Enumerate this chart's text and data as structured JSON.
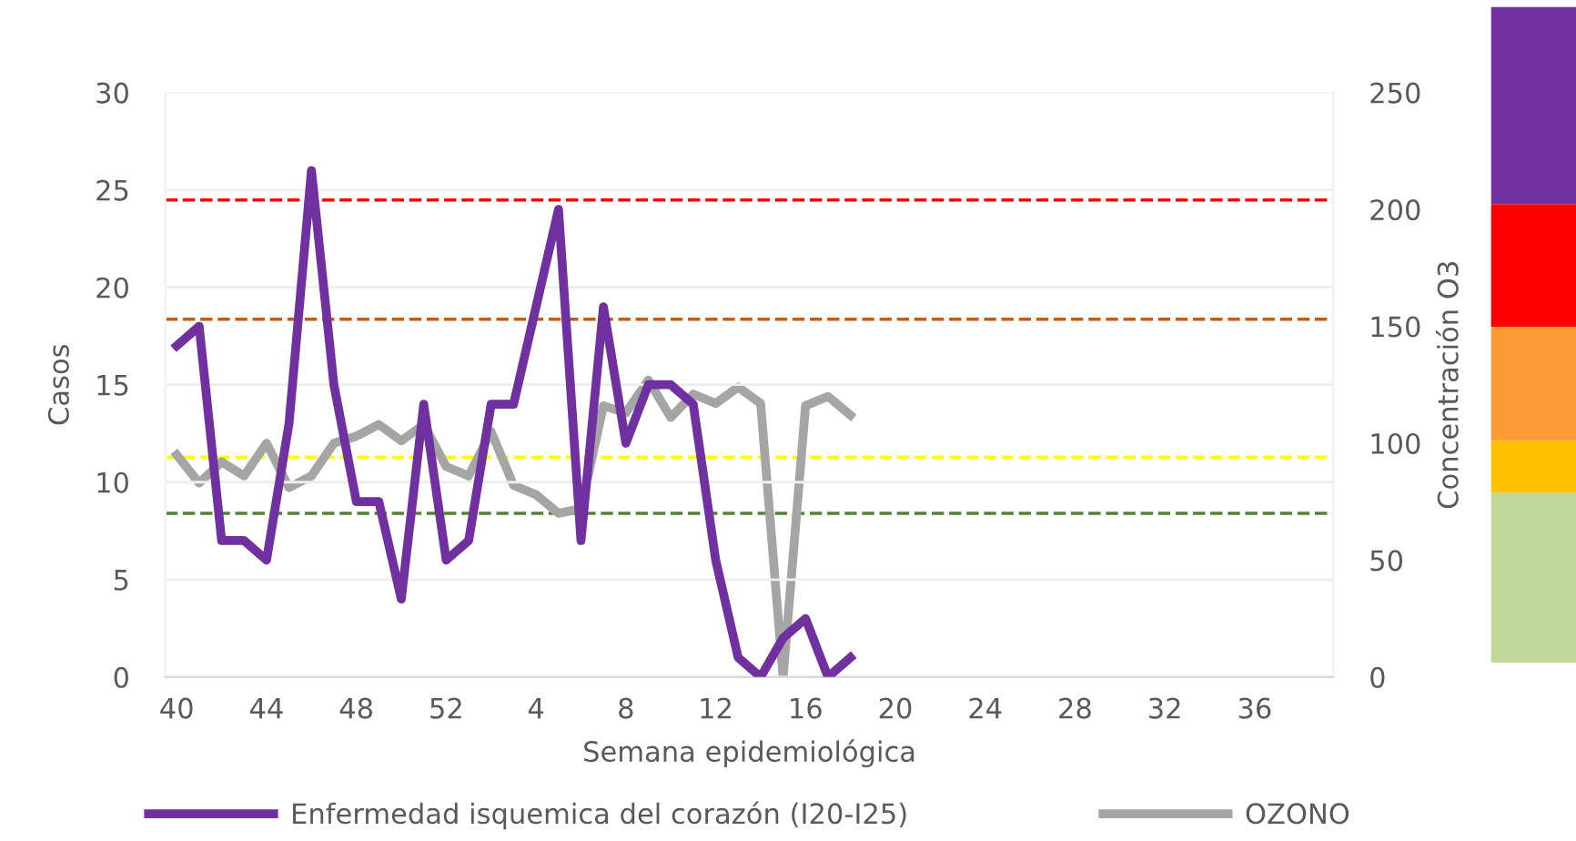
{
  "chart_data": {
    "type": "line",
    "xlabel": "Semana epidemiológica",
    "ylabel": "Casos",
    "y2label": "Concentración O3",
    "categories": [
      "40",
      null,
      null,
      null,
      "44",
      null,
      null,
      null,
      "48",
      null,
      null,
      null,
      "52",
      null,
      null,
      null,
      "4",
      null,
      null,
      null,
      "8",
      null,
      null,
      null,
      "12",
      null,
      null,
      null,
      "16",
      null,
      null,
      null,
      "20",
      null,
      null,
      null,
      "24",
      null,
      null,
      null,
      "28",
      null,
      null,
      null,
      "32",
      null,
      null,
      null,
      "36",
      null,
      null,
      null
    ],
    "series": [
      {
        "name": "Enfermedad isquemica del corazón (I20-I25)",
        "color": "#7030a0",
        "values": [
          17,
          18,
          7,
          7,
          6,
          13,
          26,
          15,
          9,
          9,
          4,
          14,
          6,
          7,
          14,
          14,
          19,
          24,
          7,
          19,
          12,
          15,
          15,
          14,
          6,
          1,
          0,
          2,
          3,
          0,
          1,
          null,
          null,
          null,
          null,
          null,
          null,
          null,
          null,
          null,
          null,
          null,
          null,
          null,
          null,
          null,
          null,
          null,
          null,
          null,
          null,
          null
        ]
      },
      {
        "name": "OZONO",
        "color": "#a5a5a5",
        "axis": "y2",
        "values": [
          95,
          83,
          92,
          86,
          100,
          81,
          86,
          100,
          103,
          108,
          101,
          108,
          90,
          86,
          105,
          82,
          78,
          70,
          72,
          116,
          113,
          127,
          111,
          121,
          117,
          124,
          117,
          0,
          116,
          120,
          112,
          null,
          null,
          null,
          null,
          null,
          null,
          null,
          null,
          null,
          null,
          null,
          null,
          null,
          null,
          null,
          null,
          null,
          null,
          null,
          null,
          null
        ]
      }
    ],
    "ylim": [
      0,
      30
    ],
    "yticks": [
      0,
      5,
      10,
      15,
      20,
      25,
      30
    ],
    "y2lim": [
      0,
      250
    ],
    "y2ticks": [
      0,
      50,
      100,
      150,
      200,
      250
    ],
    "ref_lines": [
      {
        "axis": "y2",
        "value": 204,
        "color": "#ff0000",
        "line_style": "dashed"
      },
      {
        "axis": "y2",
        "value": 153,
        "color": "#c55a11",
        "line_style": "dashed"
      },
      {
        "axis": "y2",
        "value": 94,
        "color": "#ffff00",
        "line_style": "dashed"
      },
      {
        "axis": "y2",
        "value": 70,
        "color": "#548235",
        "line_style": "dashed"
      }
    ],
    "grid": "y",
    "legend": "bottom",
    "marker": "none",
    "line_style": "solid"
  }
}
